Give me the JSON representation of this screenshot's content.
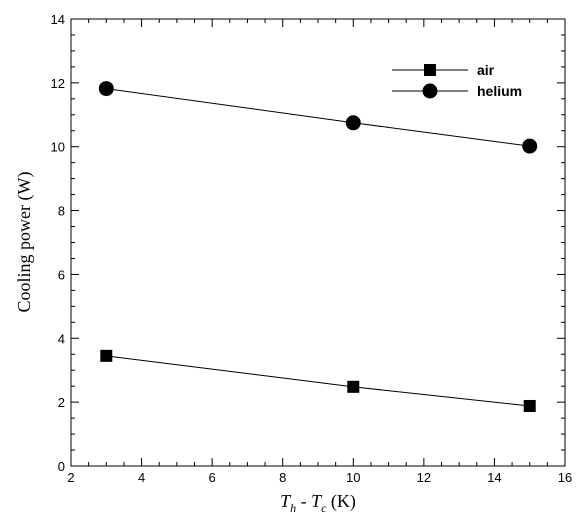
{
  "chart_data": {
    "type": "line",
    "x": [
      3,
      10,
      15
    ],
    "series": [
      {
        "name": "air",
        "marker": "square",
        "values": [
          3.45,
          2.48,
          1.88
        ]
      },
      {
        "name": "helium",
        "marker": "circle",
        "values": [
          11.82,
          10.75,
          10.02
        ]
      }
    ],
    "xlabel": {
      "t1": "T",
      "s1": "h",
      "mid": " - ",
      "t2": "T",
      "s2": "c",
      "unit": " (K)"
    },
    "ylabel": "Cooling power (W)",
    "xlim": [
      2,
      16
    ],
    "ylim": [
      0,
      14
    ],
    "xticks": [
      2,
      4,
      6,
      8,
      10,
      12,
      14,
      16
    ],
    "yticks": [
      0,
      2,
      4,
      6,
      8,
      10,
      12,
      14
    ],
    "grid": false,
    "legend_position": "top-right",
    "colors": {
      "line": "#000000",
      "marker": "#000000",
      "axis": "#000000"
    }
  }
}
